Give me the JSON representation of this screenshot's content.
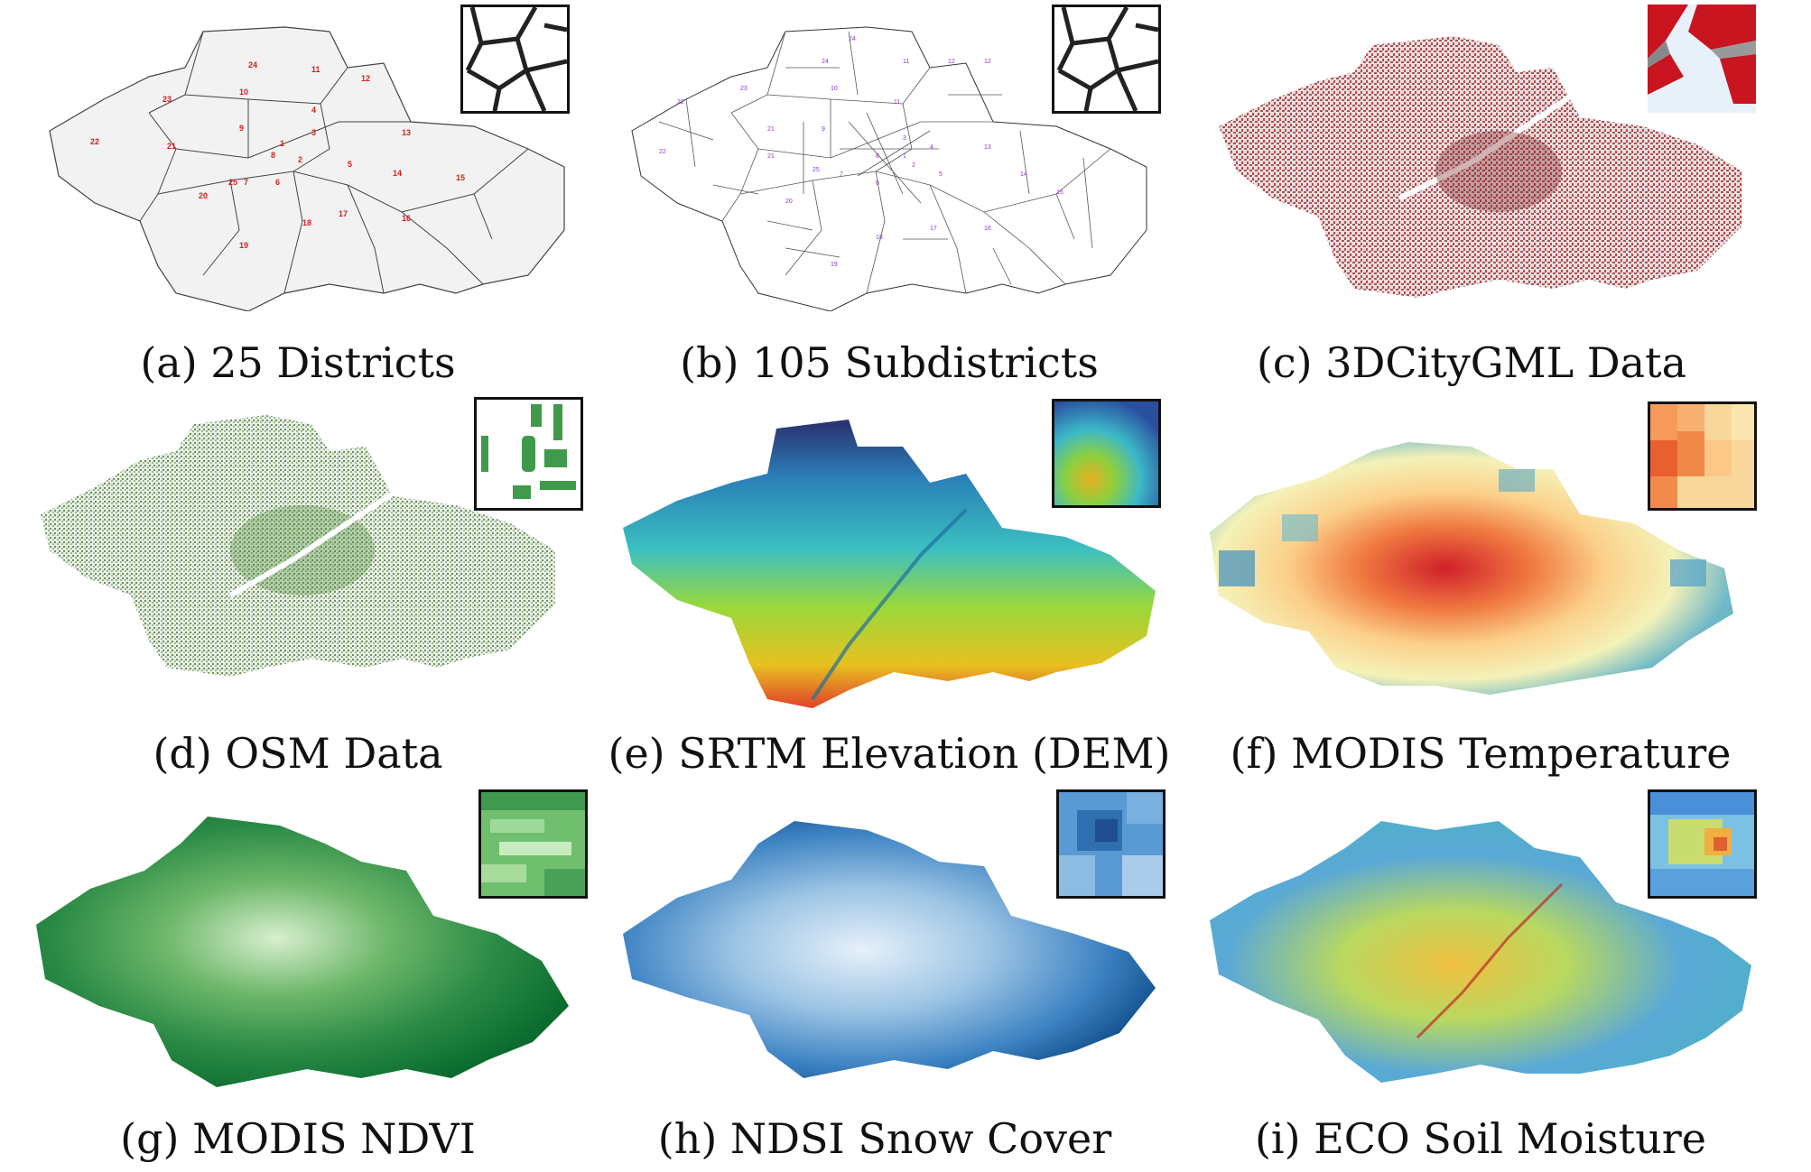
{
  "figure": {
    "panels": [
      {
        "id": "a",
        "caption": "(a) 25 Districts"
      },
      {
        "id": "b",
        "caption": "(b) 105 Subdistricts"
      },
      {
        "id": "c",
        "caption": "(c) 3DCityGML Data"
      },
      {
        "id": "d",
        "caption": "(d) OSM Data"
      },
      {
        "id": "e",
        "caption": "(e) SRTM Elevation (DEM)"
      },
      {
        "id": "f",
        "caption": "(f) MODIS Temperature"
      },
      {
        "id": "g",
        "caption": "(g) MODIS NDVI"
      },
      {
        "id": "h",
        "caption": "(h) NDSI Snow Cover"
      },
      {
        "id": "i",
        "caption": "(i) ECO Soil Moisture"
      }
    ]
  },
  "districts": [
    "1",
    "2",
    "3",
    "4",
    "5",
    "6",
    "7",
    "8",
    "9",
    "10",
    "11",
    "12",
    "13",
    "14",
    "15",
    "16",
    "17",
    "18",
    "19",
    "20",
    "21",
    "22",
    "23",
    "24",
    "25"
  ],
  "colors": {
    "district_label": "#d21f1f",
    "subdistrict_label": "#8a38d0",
    "building_red": "#b3262c",
    "osm_green": "#4f8f3a",
    "ndvi_dark": "#0b6b2e",
    "snow_dark": "#0f4c8a",
    "soil_base": "#5aa9d6"
  }
}
